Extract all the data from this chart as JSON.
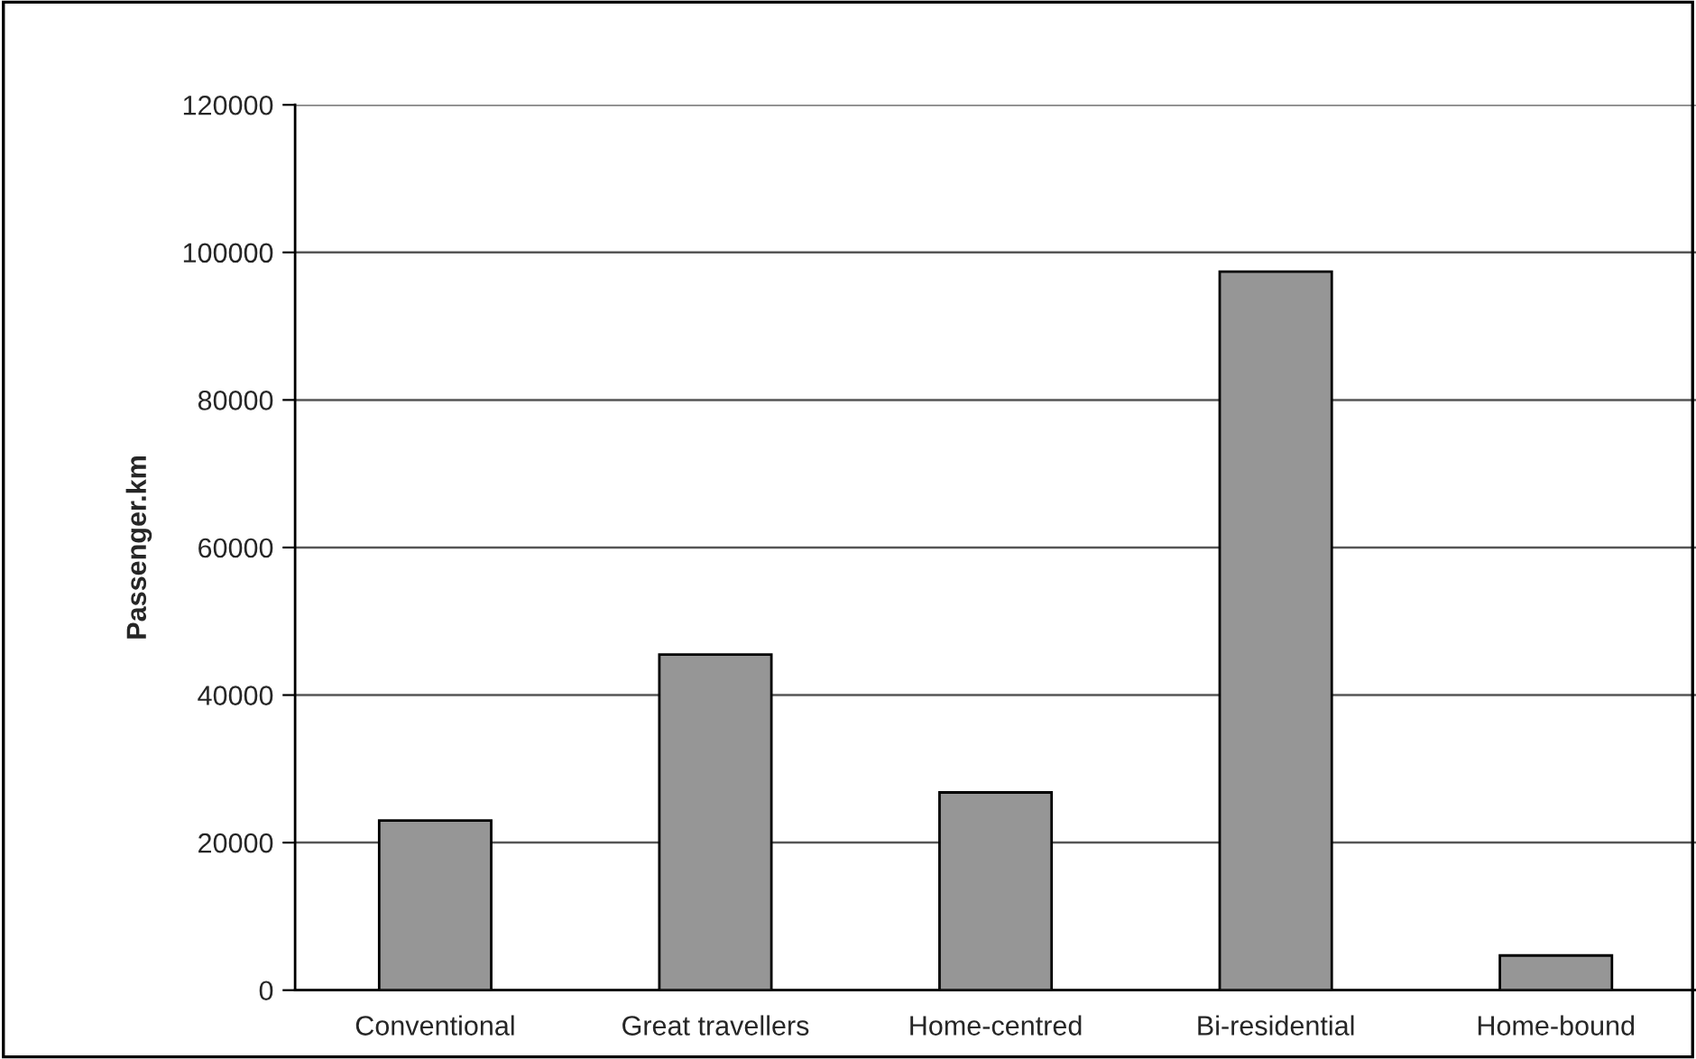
{
  "chart_data": {
    "type": "bar",
    "ylabel": "Passenger.km",
    "categories": [
      "Conventional",
      "Great travellers",
      "Home-centred",
      "Bi-residential",
      "Home-bound"
    ],
    "values": [
      23000,
      45500,
      26800,
      97400,
      4700
    ],
    "color": "#969696",
    "ylim": [
      0,
      120000
    ],
    "yticks": [
      0,
      20000,
      40000,
      60000,
      80000,
      100000,
      120000
    ],
    "grid": "y"
  }
}
